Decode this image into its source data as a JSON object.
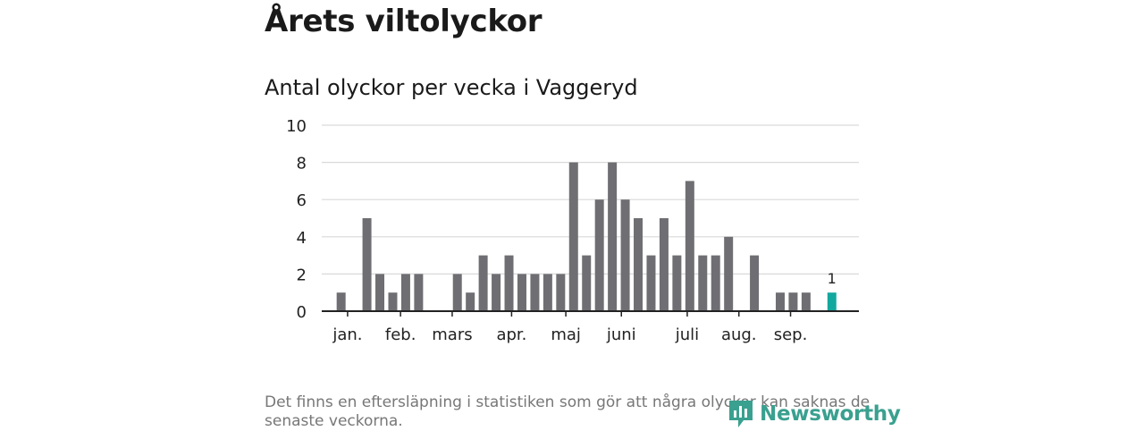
{
  "page": {
    "title": "Årets viltolyckor",
    "subtitle": "Antal olyckor per vecka i Vaggeryd",
    "footnote": "Det finns en eftersläpning i statistiken som gör att några olyckor kan saknas de senaste veckorna.",
    "brand": "Newsworthy"
  },
  "colors": {
    "bar": "#6f6e73",
    "highlight": "#13a89e",
    "grid": "#d9d9d9",
    "axis": "#222222",
    "brand": "#3aa08f"
  },
  "chart_data": {
    "type": "bar",
    "title": "Antal olyckor per vecka i Vaggeryd",
    "xlabel": "",
    "ylabel": "",
    "ylim": [
      0,
      10
    ],
    "yticks": [
      0,
      2,
      4,
      6,
      8,
      10
    ],
    "grid": true,
    "weeks": [
      1,
      2,
      3,
      4,
      5,
      6,
      7,
      8,
      9,
      10,
      11,
      12,
      13,
      14,
      15,
      16,
      17,
      18,
      19,
      20,
      21,
      22,
      23,
      24,
      25,
      26,
      27,
      28,
      29,
      30,
      31,
      32,
      33,
      34,
      35,
      36,
      37,
      38,
      39,
      40
    ],
    "values": [
      0,
      1,
      0,
      5,
      2,
      1,
      2,
      2,
      0,
      0,
      2,
      1,
      3,
      2,
      3,
      2,
      2,
      2,
      2,
      8,
      3,
      6,
      8,
      6,
      5,
      3,
      5,
      3,
      7,
      3,
      3,
      4,
      0,
      3,
      0,
      1,
      1,
      1,
      0,
      1
    ],
    "highlight_index": 39,
    "highlight_label": "1",
    "month_ticks": [
      {
        "label": "jan.",
        "week": 2.5
      },
      {
        "label": "feb.",
        "week": 6.6
      },
      {
        "label": "mars",
        "week": 10.6
      },
      {
        "label": "apr.",
        "week": 15.2
      },
      {
        "label": "maj",
        "week": 19.4
      },
      {
        "label": "juni",
        "week": 23.7
      },
      {
        "label": "juli",
        "week": 28.8
      },
      {
        "label": "aug.",
        "week": 32.8
      },
      {
        "label": "sep.",
        "week": 36.8
      }
    ]
  }
}
